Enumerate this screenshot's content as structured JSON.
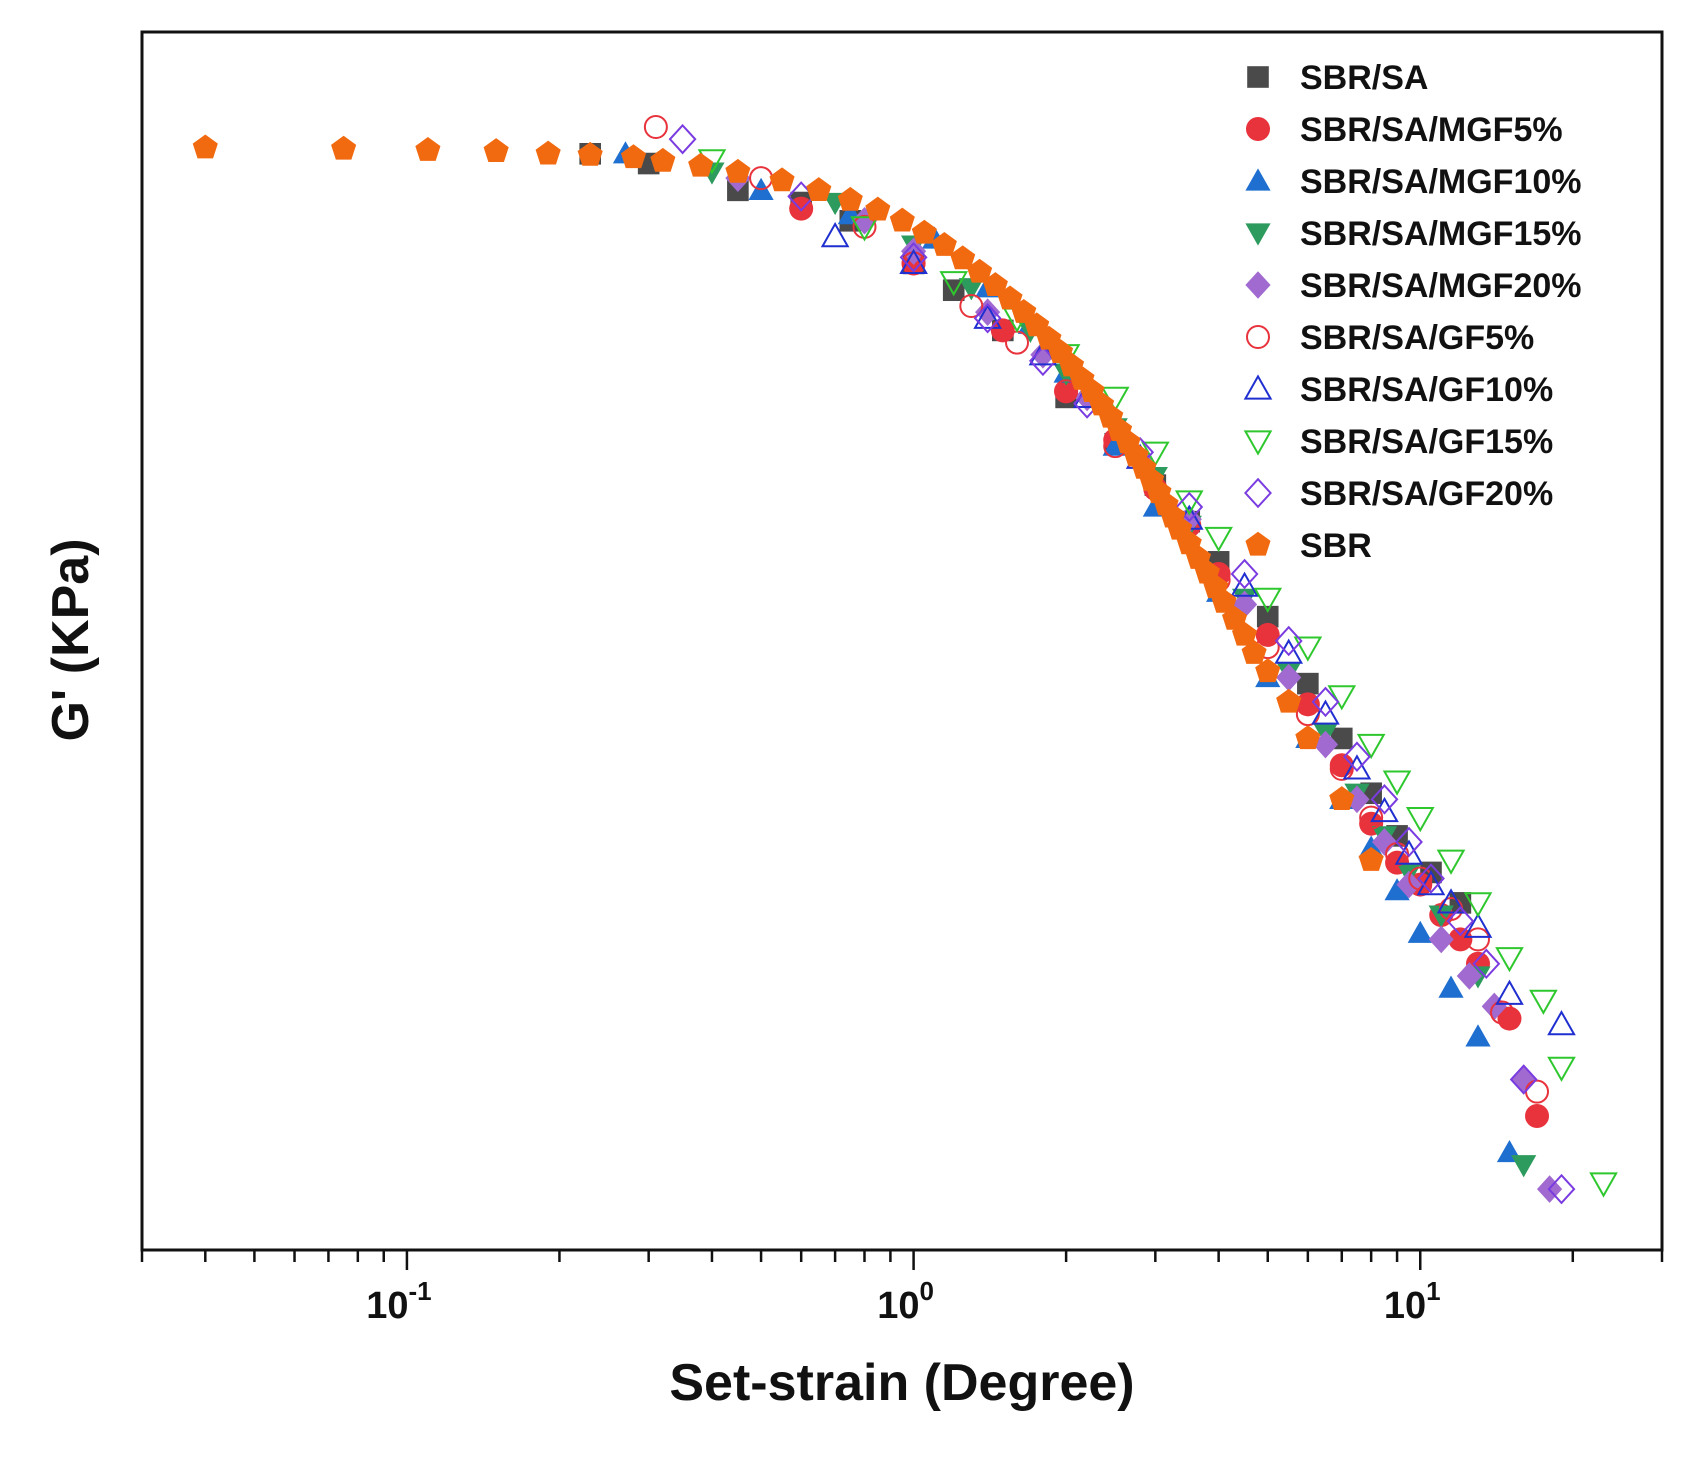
{
  "chart_data": {
    "type": "scatter",
    "xlabel": "Set-strain (Degree)",
    "ylabel": "G' (KPa)",
    "x_scale": "log",
    "xlim": [
      0.03,
      30
    ],
    "ylim": [
      0,
      1
    ],
    "y_tick_labels_shown": false,
    "grid": false,
    "legend_position": "top-right",
    "x_ticks": [
      {
        "value": 0.1,
        "base": "10",
        "exp": "-1"
      },
      {
        "value": 1,
        "base": "10",
        "exp": "0"
      },
      {
        "value": 10,
        "base": "10",
        "exp": "1"
      }
    ],
    "series": [
      {
        "name": "SBR/SA",
        "marker": "square",
        "filled": true,
        "color": "#4a4a4a",
        "x": [
          0.23,
          0.3,
          0.45,
          0.6,
          0.75,
          1.0,
          1.2,
          1.5,
          2.0,
          2.5,
          3.0,
          3.5,
          4.0,
          5.0,
          6.0,
          7.0,
          8.0,
          9.0,
          10.5,
          12.0
        ],
        "y": [
          0.9,
          0.892,
          0.87,
          0.86,
          0.845,
          0.81,
          0.788,
          0.755,
          0.7,
          0.662,
          0.628,
          0.598,
          0.565,
          0.52,
          0.465,
          0.42,
          0.375,
          0.34,
          0.31,
          0.285
        ]
      },
      {
        "name": "SBR/SA/MGF5%",
        "marker": "circle",
        "filled": true,
        "color": "#e8323c",
        "x": [
          0.6,
          1.0,
          1.5,
          2.0,
          2.5,
          3.0,
          3.5,
          4.0,
          5.0,
          6.0,
          7.0,
          8.0,
          9.0,
          10.0,
          11.0,
          12.0,
          13.0,
          15.0,
          17.0
        ],
        "y": [
          0.855,
          0.81,
          0.755,
          0.705,
          0.665,
          0.625,
          0.595,
          0.555,
          0.505,
          0.448,
          0.398,
          0.35,
          0.318,
          0.3,
          0.275,
          0.255,
          0.235,
          0.19,
          0.11
        ]
      },
      {
        "name": "SBR/SA/MGF10%",
        "marker": "triangle-up",
        "filled": true,
        "color": "#1e6fd0",
        "x": [
          0.27,
          0.5,
          0.75,
          1.1,
          1.4,
          1.7,
          2.0,
          2.5,
          3.0,
          4.0,
          5.0,
          6.0,
          7.0,
          8.0,
          9.0,
          10.0,
          11.5,
          13.0,
          15.0
        ],
        "y": [
          0.9,
          0.87,
          0.85,
          0.83,
          0.79,
          0.76,
          0.72,
          0.66,
          0.61,
          0.54,
          0.47,
          0.42,
          0.37,
          0.33,
          0.295,
          0.26,
          0.215,
          0.175,
          0.08
        ]
      },
      {
        "name": "SBR/SA/MGF15%",
        "marker": "triangle-down",
        "filled": true,
        "color": "#2e9b5e",
        "x": [
          0.4,
          0.7,
          1.0,
          1.3,
          1.7,
          2.0,
          2.5,
          3.0,
          3.5,
          4.5,
          5.5,
          6.5,
          7.5,
          8.5,
          9.5,
          11.0,
          13.0,
          16.0
        ],
        "y": [
          0.885,
          0.86,
          0.825,
          0.79,
          0.755,
          0.72,
          0.675,
          0.635,
          0.595,
          0.535,
          0.475,
          0.425,
          0.375,
          0.34,
          0.31,
          0.275,
          0.225,
          0.07
        ]
      },
      {
        "name": "SBR/SA/MGF20%",
        "marker": "diamond",
        "filled": true,
        "color": "#a06ad0",
        "x": [
          0.45,
          0.8,
          1.0,
          1.4,
          1.8,
          2.2,
          2.8,
          3.5,
          4.5,
          5.5,
          6.5,
          7.5,
          8.5,
          9.5,
          11.0,
          12.5,
          14.0,
          16.0,
          18.0
        ],
        "y": [
          0.88,
          0.845,
          0.82,
          0.77,
          0.735,
          0.7,
          0.65,
          0.6,
          0.53,
          0.47,
          0.415,
          0.37,
          0.335,
          0.3,
          0.255,
          0.225,
          0.2,
          0.14,
          0.05
        ]
      },
      {
        "name": "SBR/SA/GF5%",
        "marker": "circle",
        "filled": false,
        "color": "#e8323c",
        "x": [
          0.31,
          0.5,
          0.8,
          1.0,
          1.3,
          1.6,
          2.0,
          2.5,
          3.0,
          4.0,
          5.0,
          6.0,
          7.0,
          8.0,
          9.0,
          10.0,
          11.5,
          13.0,
          14.5,
          17.0
        ],
        "y": [
          0.922,
          0.88,
          0.84,
          0.81,
          0.775,
          0.745,
          0.705,
          0.66,
          0.625,
          0.55,
          0.495,
          0.44,
          0.395,
          0.355,
          0.325,
          0.305,
          0.28,
          0.255,
          0.195,
          0.13
        ]
      },
      {
        "name": "SBR/SA/GF10%",
        "marker": "triangle-up",
        "filled": false,
        "color": "#2030d0",
        "x": [
          0.7,
          1.0,
          1.4,
          1.8,
          2.2,
          2.8,
          3.5,
          4.5,
          5.5,
          6.5,
          7.5,
          8.5,
          9.5,
          10.5,
          11.5,
          13.0,
          15.0,
          19.0
        ],
        "y": [
          0.832,
          0.81,
          0.765,
          0.735,
          0.7,
          0.65,
          0.6,
          0.545,
          0.49,
          0.44,
          0.395,
          0.36,
          0.325,
          0.3,
          0.285,
          0.265,
          0.21,
          0.185
        ]
      },
      {
        "name": "SBR/SA/GF15%",
        "marker": "triangle-down",
        "filled": false,
        "color": "#2ec82e",
        "x": [
          0.4,
          0.8,
          1.2,
          1.6,
          2.0,
          2.5,
          3.0,
          3.5,
          4.0,
          5.0,
          6.0,
          7.0,
          8.0,
          9.0,
          10.0,
          11.5,
          13.0,
          15.0,
          17.5,
          19.0,
          23.0
        ],
        "y": [
          0.895,
          0.84,
          0.795,
          0.765,
          0.735,
          0.7,
          0.655,
          0.615,
          0.585,
          0.535,
          0.495,
          0.455,
          0.415,
          0.385,
          0.355,
          0.32,
          0.285,
          0.24,
          0.205,
          0.15,
          0.055
        ]
      },
      {
        "name": "SBR/SA/GF20%",
        "marker": "diamond",
        "filled": false,
        "color": "#7a3ce0",
        "x": [
          0.35,
          0.6,
          1.0,
          1.4,
          1.8,
          2.2,
          2.8,
          3.5,
          4.5,
          5.5,
          6.5,
          7.5,
          8.5,
          9.5,
          10.5,
          12.0,
          13.5,
          16.0,
          19.0
        ],
        "y": [
          0.912,
          0.865,
          0.815,
          0.765,
          0.73,
          0.695,
          0.655,
          0.61,
          0.555,
          0.5,
          0.45,
          0.405,
          0.37,
          0.335,
          0.305,
          0.27,
          0.235,
          0.14,
          0.05
        ]
      },
      {
        "name": "SBR",
        "marker": "pentagon",
        "filled": true,
        "color": "#f26a10",
        "x": [
          0.04,
          0.075,
          0.11,
          0.15,
          0.19,
          0.23,
          0.28,
          0.32,
          0.38,
          0.45,
          0.55,
          0.65,
          0.75,
          0.85,
          0.95,
          1.05,
          1.15,
          1.25,
          1.35,
          1.45,
          1.55,
          1.65,
          1.75,
          1.85,
          1.95,
          2.05,
          2.15,
          2.25,
          2.35,
          2.45,
          2.55,
          2.65,
          2.75,
          2.85,
          2.95,
          3.05,
          3.15,
          3.25,
          3.35,
          3.5,
          3.65,
          3.8,
          3.95,
          4.1,
          4.3,
          4.5,
          4.7,
          5.0,
          5.5,
          6.0,
          7.0,
          8.0
        ],
        "y": [
          0.905,
          0.904,
          0.903,
          0.902,
          0.9,
          0.899,
          0.897,
          0.894,
          0.89,
          0.885,
          0.878,
          0.87,
          0.862,
          0.854,
          0.845,
          0.835,
          0.825,
          0.814,
          0.803,
          0.792,
          0.781,
          0.77,
          0.759,
          0.748,
          0.737,
          0.726,
          0.715,
          0.705,
          0.694,
          0.684,
          0.673,
          0.663,
          0.652,
          0.642,
          0.632,
          0.622,
          0.612,
          0.602,
          0.592,
          0.58,
          0.568,
          0.556,
          0.544,
          0.532,
          0.518,
          0.505,
          0.49,
          0.475,
          0.45,
          0.42,
          0.37,
          0.32
        ]
      }
    ]
  }
}
